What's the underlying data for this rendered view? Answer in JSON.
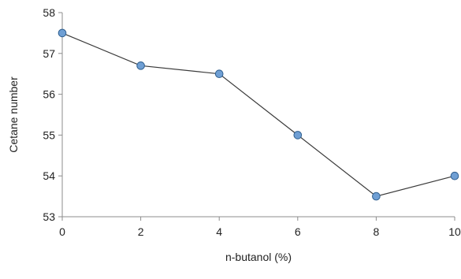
{
  "chart_data": {
    "type": "line",
    "title": "",
    "xlabel": "n-butanol (%)",
    "ylabel": "Cetane number",
    "x": [
      0,
      2,
      4,
      6,
      8,
      10
    ],
    "series": [
      {
        "values": [
          57.5,
          56.7,
          56.5,
          55.0,
          53.5,
          54.0
        ]
      }
    ],
    "xlim": [
      0,
      10
    ],
    "ylim": [
      53,
      58
    ],
    "xticks": [
      "0",
      "2",
      "4",
      "6",
      "8",
      "10"
    ],
    "yticks": [
      "53",
      "54",
      "55",
      "56",
      "57",
      "58"
    ],
    "grid": false,
    "legend": "none",
    "colors": {
      "line": "#3a3a3a",
      "marker_fill": "#6f9fd4",
      "marker_stroke": "#2f5f8f",
      "axis": "#8c8c8c"
    }
  }
}
